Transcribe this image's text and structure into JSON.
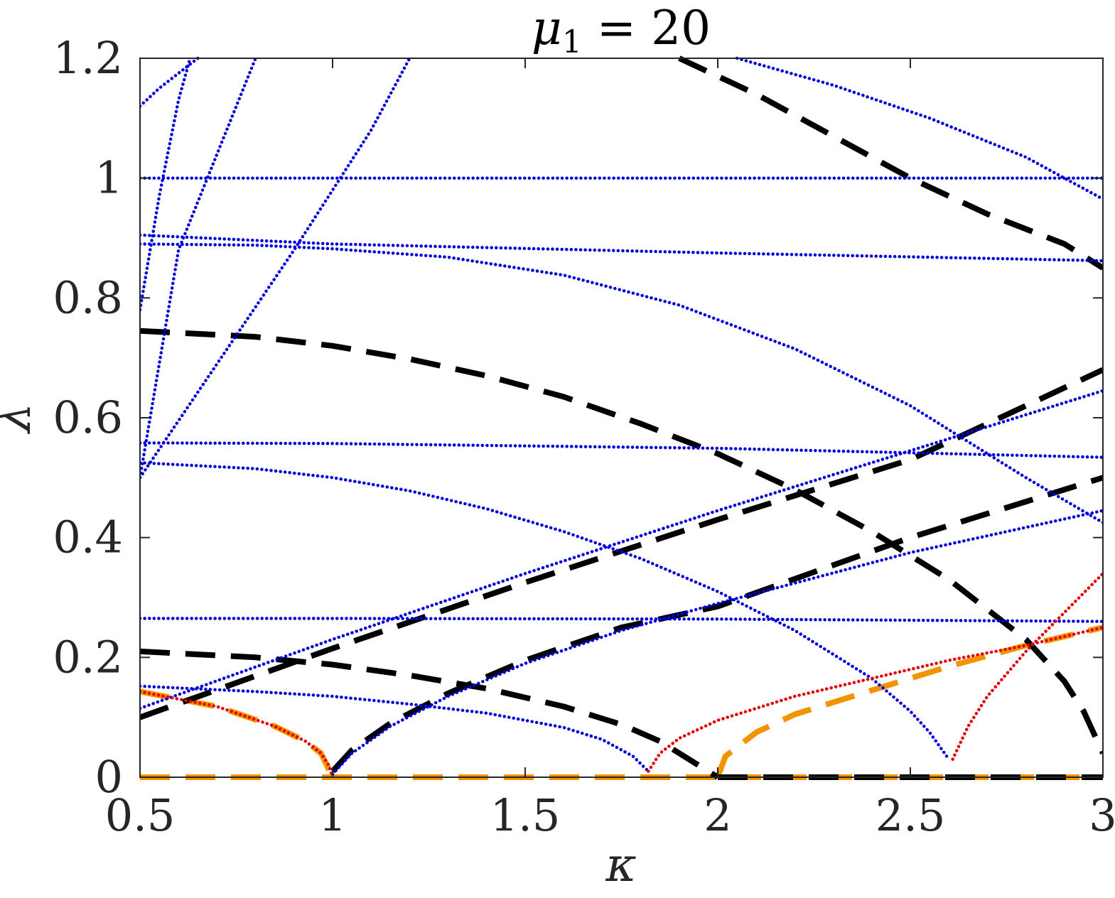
{
  "colors": {
    "blue": "#0000dd",
    "red": "#e60000",
    "orange": "#f29400",
    "black": "#000000",
    "axis": "#262626"
  },
  "chart_data": {
    "type": "scatter",
    "title": "μ₁ = 20",
    "title_main": "μ",
    "title_sub": "1",
    "title_rest": " = 20",
    "xlabel": "κ",
    "ylabel": "λ",
    "xlim": [
      0.5,
      3
    ],
    "ylim": [
      0,
      1.2
    ],
    "xticks": [
      0.5,
      1,
      1.5,
      2,
      2.5,
      3
    ],
    "xtick_labels": [
      "0.5",
      "1",
      "1.5",
      "2",
      "2.5",
      "3"
    ],
    "yticks": [
      0,
      0.2,
      0.4,
      0.6,
      0.8,
      1,
      1.2
    ],
    "ytick_labels": [
      "0",
      "0.2",
      "0.4",
      "0.6",
      "0.8",
      "1",
      "1.2"
    ],
    "grid": false,
    "series": [
      {
        "style": "dotted",
        "color": "blue",
        "x": [
          0.5,
          1.0,
          2.0,
          3.0
        ],
        "y": [
          1.0,
          1.0,
          1.0,
          1.0
        ]
      },
      {
        "style": "dotted",
        "color": "blue",
        "x": [
          0.5,
          1.0,
          2.0,
          3.0
        ],
        "y": [
          0.905,
          0.89,
          0.875,
          0.862
        ]
      },
      {
        "style": "dotted",
        "color": "blue",
        "x": [
          0.5,
          0.8,
          1.0,
          1.3,
          1.6,
          1.9,
          2.2,
          2.5,
          2.8,
          3.0
        ],
        "y": [
          0.89,
          0.888,
          0.882,
          0.868,
          0.838,
          0.788,
          0.715,
          0.62,
          0.5,
          0.425
        ]
      },
      {
        "style": "dotted",
        "color": "blue",
        "x": [
          0.5,
          1.0,
          2.0,
          3.0
        ],
        "y": [
          0.558,
          0.557,
          0.549,
          0.534
        ]
      },
      {
        "style": "dotted",
        "color": "blue",
        "x": [
          0.5,
          0.8,
          1.0,
          1.2,
          1.4,
          1.6,
          1.8,
          2.0,
          2.2,
          2.4,
          2.5,
          2.55,
          2.6
        ],
        "y": [
          0.525,
          0.515,
          0.5,
          0.478,
          0.448,
          0.41,
          0.365,
          0.31,
          0.245,
          0.165,
          0.11,
          0.075,
          0.03
        ]
      },
      {
        "style": "dotted",
        "color": "blue",
        "x": [
          0.5,
          1.0,
          2.0,
          3.0
        ],
        "y": [
          0.265,
          0.265,
          0.264,
          0.26
        ]
      },
      {
        "style": "dotted",
        "color": "blue",
        "x": [
          0.5,
          1.0,
          1.5,
          2.0,
          2.5,
          3.0
        ],
        "y": [
          0.115,
          0.23,
          0.34,
          0.445,
          0.545,
          0.645
        ]
      },
      {
        "style": "dotted",
        "color": "blue",
        "x": [
          0.5,
          0.8,
          1.0,
          1.2,
          1.4,
          1.6,
          1.7,
          1.78,
          1.82
        ],
        "y": [
          0.152,
          0.143,
          0.135,
          0.122,
          0.107,
          0.083,
          0.063,
          0.035,
          0.01
        ]
      },
      {
        "style": "dotted",
        "color": "blue",
        "x": [
          1.0,
          1.05,
          1.15,
          1.3,
          1.5,
          1.75,
          2.0,
          2.5,
          3.0
        ],
        "y": [
          0.005,
          0.04,
          0.085,
          0.135,
          0.19,
          0.245,
          0.29,
          0.375,
          0.445
        ]
      },
      {
        "style": "dotted",
        "color": "blue",
        "x": [
          0.5,
          0.55,
          0.6,
          0.65
        ],
        "y": [
          1.12,
          1.15,
          1.175,
          1.2
        ]
      },
      {
        "style": "dotted",
        "color": "blue",
        "x": [
          0.5,
          0.55,
          0.6,
          0.63
        ],
        "y": [
          0.78,
          0.97,
          1.13,
          1.2
        ]
      },
      {
        "style": "dotted",
        "color": "blue",
        "x": [
          0.5,
          0.6,
          0.7,
          0.8
        ],
        "y": [
          0.5,
          0.88,
          1.04,
          1.2
        ]
      },
      {
        "style": "dotted",
        "color": "blue",
        "x": [
          0.5,
          0.7,
          0.9,
          1.1,
          1.2
        ],
        "y": [
          0.5,
          0.69,
          0.88,
          1.08,
          1.2
        ]
      },
      {
        "style": "dotted",
        "color": "blue",
        "x": [
          2.05,
          2.3,
          2.55,
          2.8,
          3.0
        ],
        "y": [
          1.2,
          1.155,
          1.1,
          1.035,
          0.965
        ]
      },
      {
        "style": "dotted",
        "color": "red",
        "x": [
          0.5,
          0.7,
          0.85,
          0.93,
          0.97,
          0.99,
          1.0
        ],
        "y": [
          0.143,
          0.118,
          0.085,
          0.06,
          0.04,
          0.02,
          0.0
        ]
      },
      {
        "style": "dotted",
        "color": "red",
        "x": [
          1.82,
          1.85,
          1.9,
          2.0,
          2.2,
          2.4,
          2.6,
          2.8,
          3.0
        ],
        "y": [
          0.01,
          0.04,
          0.065,
          0.095,
          0.135,
          0.165,
          0.195,
          0.22,
          0.25
        ]
      },
      {
        "style": "dotted",
        "color": "red",
        "x": [
          2.61,
          2.65,
          2.7,
          2.8,
          2.9,
          3.0
        ],
        "y": [
          0.03,
          0.085,
          0.135,
          0.21,
          0.275,
          0.34
        ]
      },
      {
        "style": "dashed",
        "color": "orange",
        "x": [
          0.5,
          0.7,
          0.85,
          0.93,
          0.97,
          1.0
        ],
        "y": [
          0.143,
          0.118,
          0.085,
          0.06,
          0.04,
          0.0
        ]
      },
      {
        "style": "dashed",
        "color": "orange",
        "x": [
          0.5,
          1.0,
          2.0,
          3.0
        ],
        "y": [
          0.0,
          0.0,
          0.0,
          0.0
        ]
      },
      {
        "style": "dashed",
        "color": "orange",
        "x": [
          2.0,
          2.02,
          2.1,
          2.2,
          2.4,
          2.6,
          2.8,
          3.0
        ],
        "y": [
          0.0,
          0.035,
          0.075,
          0.105,
          0.145,
          0.185,
          0.22,
          0.25
        ]
      },
      {
        "style": "dashed",
        "color": "black",
        "x": [
          0.5,
          0.8,
          1.0,
          1.2,
          1.4,
          1.6,
          1.8,
          2.0,
          2.2,
          2.4,
          2.6,
          2.8,
          2.9,
          2.95,
          3.0
        ],
        "y": [
          0.745,
          0.735,
          0.72,
          0.698,
          0.67,
          0.635,
          0.59,
          0.54,
          0.48,
          0.41,
          0.33,
          0.23,
          0.16,
          0.11,
          0.04
        ]
      },
      {
        "style": "dashed",
        "color": "black",
        "x": [
          0.5,
          1.0,
          1.5,
          2.0,
          2.5,
          3.0
        ],
        "y": [
          0.1,
          0.215,
          0.325,
          0.43,
          0.53,
          0.68
        ]
      },
      {
        "style": "dashed",
        "color": "black",
        "x": [
          0.5,
          0.8,
          1.0,
          1.2,
          1.4,
          1.6,
          1.75,
          1.85,
          1.95,
          2.0
        ],
        "y": [
          0.21,
          0.2,
          0.188,
          0.17,
          0.148,
          0.118,
          0.088,
          0.06,
          0.02,
          0.0
        ]
      },
      {
        "style": "dashed",
        "color": "black",
        "x": [
          1.0,
          1.05,
          1.15,
          1.3,
          1.5,
          1.75,
          2.0,
          2.5,
          3.0
        ],
        "y": [
          0.01,
          0.045,
          0.09,
          0.14,
          0.195,
          0.25,
          0.285,
          0.4,
          0.5
        ]
      },
      {
        "style": "dashed",
        "color": "black",
        "x": [
          2.0,
          2.5,
          3.0
        ],
        "y": [
          0.0,
          0.0,
          0.0
        ]
      },
      {
        "style": "dashed",
        "color": "black",
        "x": [
          1.9,
          2.1,
          2.3,
          2.5,
          2.7,
          2.9,
          3.0
        ],
        "y": [
          1.2,
          1.14,
          1.07,
          1.0,
          0.94,
          0.89,
          0.85
        ]
      }
    ]
  }
}
